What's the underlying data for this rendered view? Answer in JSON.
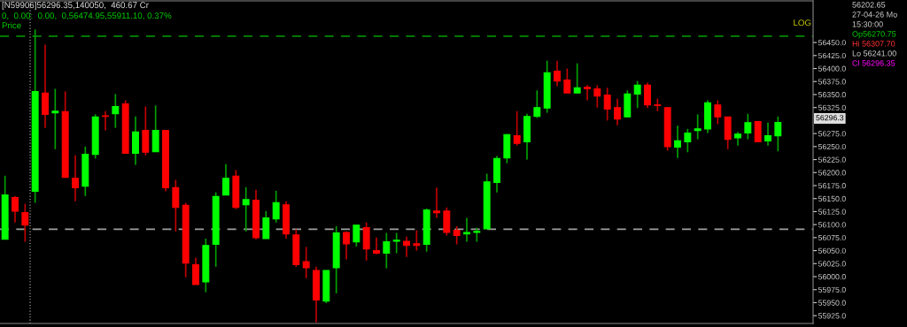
{
  "chart_data": {
    "type": "candlestick",
    "title": "[N59906]56296.35,140050,  460.67 Cr",
    "categories": [
      null,
      null,
      null,
      null,
      null,
      null,
      null,
      null,
      null,
      null,
      null,
      null,
      null,
      null,
      null,
      null,
      null,
      null,
      null,
      null,
      null,
      null,
      null,
      null,
      null,
      null,
      null,
      null,
      null,
      null,
      null,
      null,
      null,
      null,
      null,
      null,
      null,
      null,
      null,
      null,
      null,
      null,
      null,
      null,
      null,
      null,
      null,
      null,
      null,
      null,
      null,
      null,
      null,
      null,
      null,
      null,
      null,
      null,
      null,
      null,
      null,
      null,
      null,
      null,
      null,
      null,
      null,
      null,
      null,
      null,
      null,
      null,
      null,
      null,
      null,
      null,
      null,
      null
    ],
    "ohlc": [
      [
        56072,
        56194,
        56072,
        56157
      ],
      [
        56152,
        56155,
        56104,
        56126
      ],
      [
        56123,
        56140,
        56067,
        56099
      ],
      [
        56164,
        56475,
        56142,
        56356
      ],
      [
        56353,
        56446,
        56286,
        56312
      ],
      [
        56315,
        56361,
        56245,
        56318
      ],
      [
        56317,
        56356,
        56191,
        56191
      ],
      [
        56189,
        56233,
        56145,
        56171
      ],
      [
        56174,
        56250,
        56155,
        56235
      ],
      [
        56235,
        56312,
        56227,
        56307
      ],
      [
        56309,
        56318,
        56281,
        56308
      ],
      [
        56313,
        56351,
        56286,
        56327
      ],
      [
        56332,
        56339,
        56237,
        56237
      ],
      [
        56237,
        56308,
        56215,
        56278
      ],
      [
        56281,
        56327,
        56233,
        56239
      ],
      [
        56240,
        56329,
        56240,
        56281
      ],
      [
        56281,
        56281,
        56164,
        56171
      ],
      [
        56171,
        56186,
        56087,
        56133
      ],
      [
        56137,
        56142,
        55999,
        56026
      ],
      [
        56023,
        56036,
        55985,
        55985
      ],
      [
        55990,
        56073,
        55970,
        56060
      ],
      [
        56062,
        56162,
        56019,
        56154
      ],
      [
        56157,
        56216,
        56157,
        56189
      ],
      [
        56193,
        56205,
        56130,
        56133
      ],
      [
        56138,
        56172,
        56087,
        56148
      ],
      [
        56147,
        56167,
        56072,
        56075
      ],
      [
        56073,
        56126,
        56073,
        56113
      ],
      [
        56111,
        56165,
        56104,
        56142
      ],
      [
        56138,
        56145,
        56073,
        56082
      ],
      [
        56080,
        56091,
        56019,
        56023
      ],
      [
        56029,
        56057,
        55997,
        56017
      ],
      [
        56012,
        56019,
        55912,
        55955
      ],
      [
        55953,
        56012,
        55949,
        56012
      ],
      [
        56017,
        56097,
        55968,
        56084
      ],
      [
        56085,
        56087,
        56033,
        56063
      ],
      [
        56067,
        56099,
        56058,
        56099
      ],
      [
        56094,
        56104,
        56031,
        56053
      ],
      [
        56050,
        56075,
        56043,
        56045
      ],
      [
        56045,
        56084,
        56016,
        56067
      ],
      [
        56068,
        56084,
        56045,
        56070
      ],
      [
        56068,
        56077,
        56038,
        56060
      ],
      [
        56063,
        56089,
        56050,
        56060
      ],
      [
        56062,
        56131,
        56048,
        56128
      ],
      [
        56126,
        56171,
        56113,
        56123
      ],
      [
        56126,
        56133,
        56079,
        56085
      ],
      [
        56089,
        56097,
        56062,
        56079
      ],
      [
        56082,
        56113,
        56067,
        56085
      ],
      [
        56085,
        56094,
        56067,
        56087
      ],
      [
        56092,
        56198,
        56092,
        56182
      ],
      [
        56181,
        56232,
        56162,
        56227
      ],
      [
        56228,
        56274,
        56218,
        56273
      ],
      [
        56271,
        56318,
        56252,
        56256
      ],
      [
        56259,
        56313,
        56225,
        56308
      ],
      [
        56308,
        56358,
        56305,
        56325
      ],
      [
        56324,
        56415,
        56315,
        56392
      ],
      [
        56395,
        56415,
        56366,
        56376
      ],
      [
        56378,
        56400,
        56353,
        56353
      ],
      [
        56353,
        56410,
        56353,
        56363
      ],
      [
        56364,
        56368,
        56339,
        56361
      ],
      [
        56361,
        56368,
        56325,
        56347
      ],
      [
        56349,
        56363,
        56300,
        56322
      ],
      [
        56325,
        56342,
        56291,
        56303
      ],
      [
        56307,
        56358,
        56307,
        56351
      ],
      [
        56351,
        56376,
        56324,
        56368
      ],
      [
        56368,
        56373,
        56324,
        56330
      ],
      [
        56330,
        56342,
        56318,
        56329
      ],
      [
        56325,
        56325,
        56242,
        56250
      ],
      [
        56249,
        56290,
        56228,
        56261
      ],
      [
        56259,
        56284,
        56239,
        56276
      ],
      [
        56281,
        56312,
        56264,
        56284
      ],
      [
        56284,
        56339,
        56276,
        56334
      ],
      [
        56330,
        56339,
        56293,
        56307
      ],
      [
        56307,
        56307,
        56245,
        56264
      ],
      [
        56267,
        56278,
        56252,
        56274
      ],
      [
        56276,
        56313,
        56264,
        56296
      ],
      [
        56298,
        56298,
        56259,
        56259
      ],
      [
        56261,
        56296,
        56252,
        56271
      ],
      [
        56270.75,
        56307.7,
        56241,
        56296.35
      ]
    ],
    "ylim": [
      55910,
      56530
    ],
    "yticks": [
      {
        "value": 55925,
        "label": "55925.0"
      },
      {
        "value": 55950,
        "label": "55950.0"
      },
      {
        "value": 55975,
        "label": "55975.0"
      },
      {
        "value": 56000,
        "label": "56000.0"
      },
      {
        "value": 56025,
        "label": "56025.0"
      },
      {
        "value": 56050,
        "label": "56050.0"
      },
      {
        "value": 56075,
        "label": "56075.0"
      },
      {
        "value": 56100,
        "label": "56100.0"
      },
      {
        "value": 56125,
        "label": "56125.0"
      },
      {
        "value": 56150,
        "label": "56150.0"
      },
      {
        "value": 56175,
        "label": "56175.0"
      },
      {
        "value": 56200,
        "label": "56200.0"
      },
      {
        "value": 56225,
        "label": "56225.0"
      },
      {
        "value": 56250,
        "label": "56250.0"
      },
      {
        "value": 56275,
        "label": "56275.0"
      },
      {
        "value": 56325,
        "label": "56325.0"
      },
      {
        "value": 56350,
        "label": "56350.0"
      },
      {
        "value": 56375,
        "label": "56375.0"
      },
      {
        "value": 56400,
        "label": "56400.0"
      },
      {
        "value": 56425,
        "label": "56425.0"
      },
      {
        "value": 56450,
        "label": "56450.0"
      }
    ],
    "tick_labels": "y",
    "grid": false,
    "ref_lines": [
      {
        "axis": "y",
        "value": 56462,
        "color": "#00a000",
        "line_style": "dashed"
      },
      {
        "axis": "y",
        "value": 56091,
        "color": "#a0a0a0",
        "line_style": "dashed"
      }
    ],
    "annotations": [
      "0,  0.00:  0.00,  0,56474.95,55911.10, 0.37%",
      "Price",
      "LOG",
      "56202.65",
      "27-04-26 Mo",
      "15:30:00",
      "Op56270.75",
      "Hi 56307.70",
      "Lo 56241.00",
      "Cl 56296.35",
      "56296.3"
    ]
  }
}
